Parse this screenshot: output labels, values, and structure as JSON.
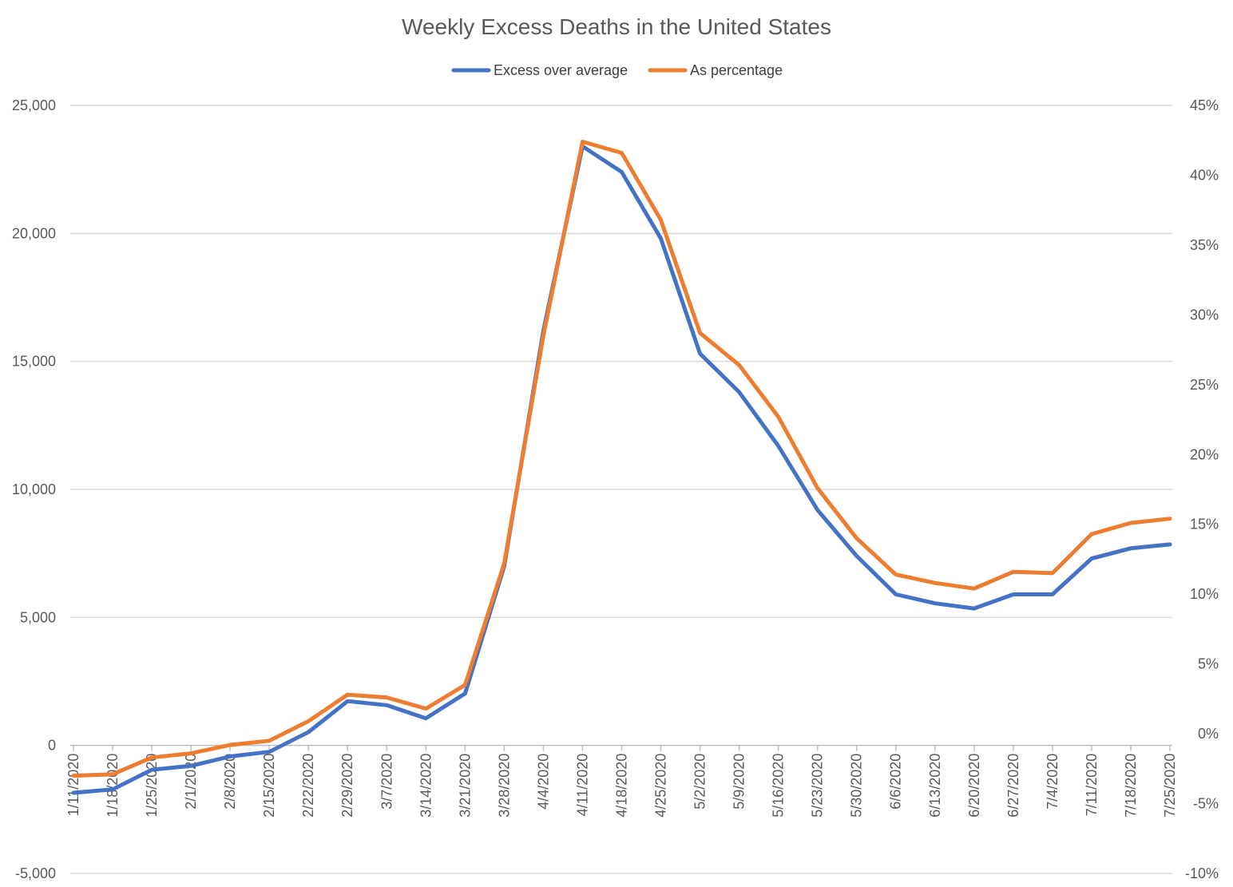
{
  "chart_data": {
    "type": "line",
    "title": "Weekly Excess Deaths in the United States",
    "categories": [
      "1/11/2020",
      "1/18/2020",
      "1/25/2020",
      "2/1/2020",
      "2/8/2020",
      "2/15/2020",
      "2/22/2020",
      "2/29/2020",
      "3/7/2020",
      "3/14/2020",
      "3/21/2020",
      "3/28/2020",
      "4/4/2020",
      "4/11/2020",
      "4/18/2020",
      "4/25/2020",
      "5/2/2020",
      "5/9/2020",
      "5/16/2020",
      "5/23/2020",
      "5/30/2020",
      "6/6/2020",
      "6/13/2020",
      "6/20/2020",
      "6/27/2020",
      "7/4/2020",
      "7/11/2020",
      "7/18/2020",
      "7/25/2020"
    ],
    "series": [
      {
        "name": "Excess over average",
        "axis": "left",
        "color": "#4472c4",
        "values": [
          -1850,
          -1720,
          -950,
          -800,
          -430,
          -250,
          520,
          1730,
          1570,
          1060,
          2030,
          7000,
          16200,
          23400,
          22400,
          19800,
          15300,
          13800,
          11700,
          9200,
          7400,
          5900,
          5550,
          5350,
          5900,
          5900,
          7300,
          7700,
          7850
        ]
      },
      {
        "name": "As percentage",
        "axis": "right",
        "color": "#ed7d31",
        "values": [
          -3.0,
          -2.9,
          -1.7,
          -1.4,
          -0.8,
          -0.5,
          0.9,
          2.8,
          2.6,
          1.8,
          3.5,
          12.2,
          28.5,
          42.4,
          41.6,
          36.8,
          28.7,
          26.4,
          22.7,
          17.6,
          14.0,
          11.4,
          10.8,
          10.4,
          11.6,
          11.5,
          14.3,
          15.1,
          15.4
        ]
      }
    ],
    "y_left": {
      "ylim": [
        -5000,
        25000
      ],
      "ticks": [
        -5000,
        0,
        5000,
        10000,
        15000,
        20000,
        25000
      ],
      "tick_labels": [
        "-5,000",
        "0",
        "5,000",
        "10,000",
        "15,000",
        "20,000",
        "25,000"
      ]
    },
    "y_right": {
      "ylim": [
        -10,
        45
      ],
      "ticks": [
        -10,
        -5,
        0,
        5,
        10,
        15,
        20,
        25,
        30,
        35,
        40,
        45
      ],
      "tick_labels": [
        "-10%",
        "-5%",
        "0%",
        "5%",
        "10%",
        "15%",
        "20%",
        "25%",
        "30%",
        "35%",
        "40%",
        "45%"
      ]
    },
    "xlabel": "",
    "ylabel": "",
    "grid": true,
    "legend_position": "top-center"
  }
}
